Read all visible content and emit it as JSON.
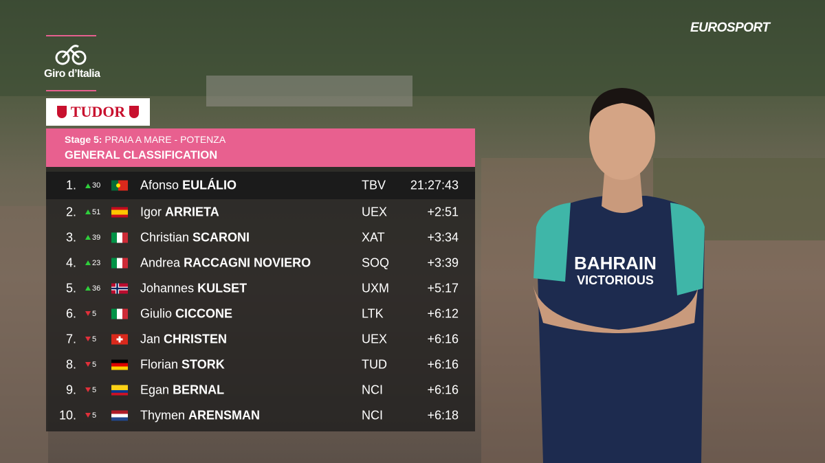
{
  "broadcaster": "EUROSPORT",
  "race": "Giro d’Italia",
  "sponsor": "TUDOR",
  "header": {
    "stage": "Stage 5:",
    "route": "PRAIA A MARE - POTENZA",
    "title": "GENERAL CLASSIFICATION"
  },
  "rows": [
    {
      "rank": "1.",
      "change": 30,
      "first_name": "Afonso",
      "last_name": "EULÁLIO",
      "team": "TBV",
      "time": "21:27:43"
    },
    {
      "rank": "2.",
      "change": 51,
      "first_name": "Igor",
      "last_name": "ARRIETA",
      "team": "UEX",
      "time": "+2:51"
    },
    {
      "rank": "3.",
      "change": 39,
      "first_name": "Christian",
      "last_name": "SCARONI",
      "team": "XAT",
      "time": "+3:34"
    },
    {
      "rank": "4.",
      "change": 23,
      "first_name": "Andrea",
      "last_name": "RACCAGNI NOVIERO",
      "team": "SOQ",
      "time": "+3:39"
    },
    {
      "rank": "5.",
      "change": 36,
      "first_name": "Johannes",
      "last_name": "KULSET",
      "team": "UXM",
      "time": "+5:17"
    },
    {
      "rank": "6.",
      "change": 5,
      "first_name": "Giulio",
      "last_name": "CICCONE",
      "team": "LTK",
      "time": "+6:12"
    },
    {
      "rank": "7.",
      "change": 5,
      "first_name": "Jan",
      "last_name": "CHRISTEN",
      "team": "UEX",
      "time": "+6:16"
    },
    {
      "rank": "8.",
      "change": 5,
      "first_name": "Florian",
      "last_name": "STORK",
      "team": "TUD",
      "time": "+6:16"
    },
    {
      "rank": "9.",
      "change": 5,
      "first_name": "Egan",
      "last_name": "BERNAL",
      "team": "NCI",
      "time": "+6:16"
    },
    {
      "rank": "10.",
      "change": 5,
      "first_name": "Thymen",
      "last_name": "ARENSMAN",
      "team": "NCI",
      "time": "+6:18"
    }
  ]
}
